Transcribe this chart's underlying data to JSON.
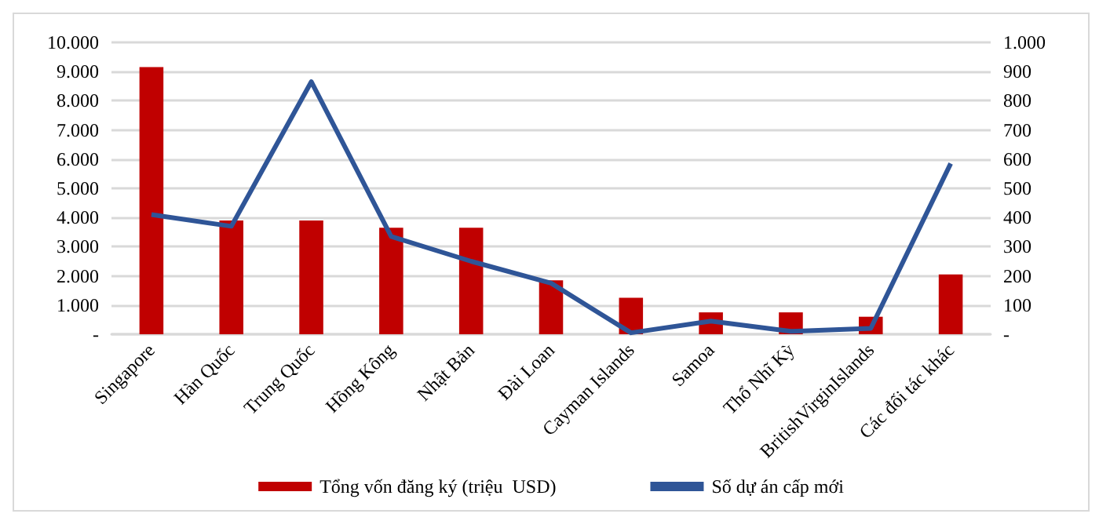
{
  "chart_data": {
    "type": "bar",
    "categories": [
      "Singapore",
      "Hàn Quốc",
      "Trung Quốc",
      "Hồng Kông",
      "Nhật Bản",
      "Đài Loan",
      "Cayman Islands",
      "Samoa",
      "Thổ Nhĩ Kỳ",
      "BritishVirginIslands",
      "Các đối tác khác"
    ],
    "series": [
      {
        "name": "Tổng vốn đăng ký (triệu  USD)",
        "color": "#c00000",
        "values": [
          9150,
          3900,
          3900,
          3650,
          3650,
          1850,
          1250,
          750,
          750,
          600,
          2050
        ]
      },
      {
        "name": "Số dự án cấp mới",
        "type": "line",
        "axis": "y2",
        "color": "#2f5597",
        "values": [
          410,
          370,
          865,
          335,
          250,
          175,
          5,
          45,
          10,
          20,
          585
        ]
      }
    ],
    "ylim": [
      0,
      10000
    ],
    "yticks": [
      {
        "value": 0,
        "label": "-"
      },
      {
        "value": 1000,
        "label": "1.000"
      },
      {
        "value": 2000,
        "label": "2.000"
      },
      {
        "value": 3000,
        "label": "3.000"
      },
      {
        "value": 4000,
        "label": "4.000"
      },
      {
        "value": 5000,
        "label": "5.000"
      },
      {
        "value": 6000,
        "label": "6.000"
      },
      {
        "value": 7000,
        "label": "7.000"
      },
      {
        "value": 8000,
        "label": "8.000"
      },
      {
        "value": 9000,
        "label": "9.000"
      },
      {
        "value": 10000,
        "label": "10.000"
      }
    ],
    "y2lim": [
      0,
      1000
    ],
    "y2ticks": [
      {
        "value": 0,
        "label": "-"
      },
      100,
      200,
      300,
      400,
      500,
      600,
      700,
      800,
      900,
      {
        "value": 1000,
        "label": "1.000"
      }
    ],
    "grid": "y",
    "legend": "bottom",
    "marker": "none"
  }
}
